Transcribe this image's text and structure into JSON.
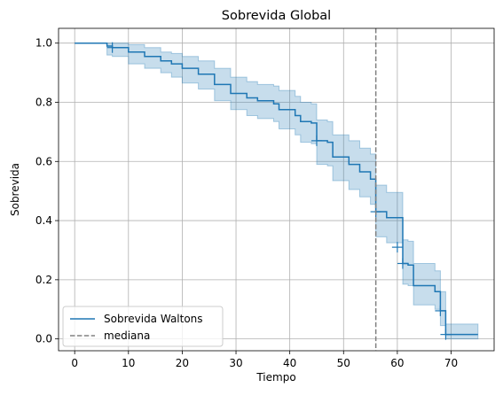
{
  "chart_data": {
    "type": "line",
    "title": "Sobrevida Global",
    "xlabel": "Tiempo",
    "ylabel": "Sobrevida",
    "xlim": [
      -3,
      78
    ],
    "ylim": [
      -0.04,
      1.05
    ],
    "xticks": [
      0,
      10,
      20,
      30,
      40,
      50,
      60,
      70
    ],
    "yticks": [
      0.0,
      0.2,
      0.4,
      0.6,
      0.8,
      1.0
    ],
    "grid": true,
    "legend_position": "lower-left",
    "colors": {
      "series": "#1f77b4",
      "band": "#1f77b4",
      "median": "#808080"
    },
    "series": [
      {
        "name": "Sobrevida Waltons",
        "x": [
          0,
          6,
          7,
          10,
          13,
          16,
          18,
          20,
          23,
          26,
          29,
          32,
          34,
          37,
          38,
          41,
          42,
          44,
          45,
          47,
          48,
          51,
          53,
          55,
          56,
          58,
          61,
          62,
          63,
          67,
          68,
          69,
          75
        ],
        "y": [
          1.0,
          0.99,
          0.985,
          0.97,
          0.955,
          0.94,
          0.93,
          0.915,
          0.895,
          0.86,
          0.83,
          0.815,
          0.805,
          0.795,
          0.775,
          0.755,
          0.735,
          0.73,
          0.67,
          0.665,
          0.615,
          0.59,
          0.565,
          0.54,
          0.43,
          0.41,
          0.255,
          0.25,
          0.18,
          0.16,
          0.095,
          0.015,
          0.015
        ],
        "ci_lower": [
          1.0,
          0.96,
          0.955,
          0.93,
          0.915,
          0.9,
          0.885,
          0.865,
          0.845,
          0.805,
          0.775,
          0.755,
          0.745,
          0.735,
          0.71,
          0.69,
          0.665,
          0.66,
          0.59,
          0.585,
          0.535,
          0.505,
          0.48,
          0.455,
          0.345,
          0.325,
          0.185,
          0.18,
          0.115,
          0.1,
          0.045,
          0.0,
          0.0
        ],
        "ci_upper": [
          1.0,
          1.0,
          1.0,
          0.995,
          0.985,
          0.97,
          0.965,
          0.955,
          0.94,
          0.915,
          0.885,
          0.87,
          0.86,
          0.855,
          0.84,
          0.82,
          0.8,
          0.795,
          0.74,
          0.735,
          0.69,
          0.67,
          0.645,
          0.625,
          0.52,
          0.495,
          0.335,
          0.33,
          0.255,
          0.23,
          0.16,
          0.05,
          0.05
        ],
        "censored": [
          [
            7,
            0.985
          ],
          [
            45,
            0.67
          ],
          [
            56,
            0.43
          ],
          [
            60,
            0.31
          ],
          [
            61,
            0.255
          ],
          [
            68,
            0.095
          ],
          [
            69,
            0.015
          ]
        ]
      }
    ],
    "median_line": {
      "name": "mediana",
      "x": 56
    }
  }
}
